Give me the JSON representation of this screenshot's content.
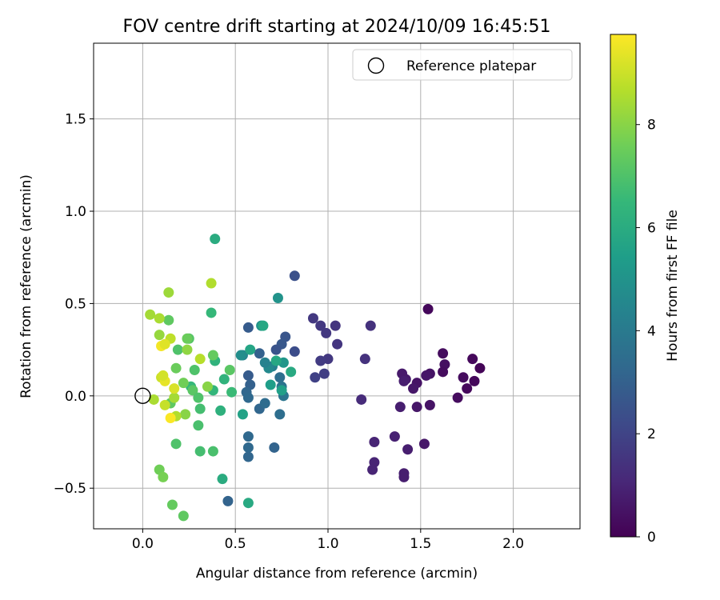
{
  "chart_data": {
    "type": "scatter",
    "title": "FOV centre drift starting at 2024/10/09 16:45:51",
    "xlabel": "Angular distance from reference (arcmin)",
    "ylabel": "Rotation from reference (arcmin)",
    "xlim": [
      -0.265,
      2.36
    ],
    "ylim": [
      -0.72,
      1.91
    ],
    "xticks": [
      0.0,
      0.5,
      1.0,
      1.5,
      2.0
    ],
    "xtick_labels": [
      "0.0",
      "0.5",
      "1.0",
      "1.5",
      "2.0"
    ],
    "yticks": [
      -0.5,
      0.0,
      0.5,
      1.0,
      1.5
    ],
    "ytick_labels": [
      "−0.5",
      "0.0",
      "0.5",
      "1.0",
      "1.5"
    ],
    "grid": true,
    "legend": {
      "placement": "top-right",
      "entries": [
        "Reference platepar"
      ]
    },
    "reference_point": {
      "x": 0.0,
      "y": 0.0,
      "label": "Reference platepar"
    },
    "colorbar": {
      "label": "Hours from first FF file",
      "colormap": "viridis",
      "range": [
        0,
        9.75
      ],
      "ticks": [
        0,
        2,
        4,
        6,
        8
      ],
      "tick_labels": [
        "0",
        "2",
        "4",
        "6",
        "8"
      ]
    },
    "points": [
      {
        "x": 1.54,
        "y": 0.47,
        "hours": 0.2
      },
      {
        "x": 1.62,
        "y": 0.23,
        "hours": 0.3
      },
      {
        "x": 1.63,
        "y": 0.17,
        "hours": 0.4
      },
      {
        "x": 1.62,
        "y": 0.13,
        "hours": 0.3
      },
      {
        "x": 1.78,
        "y": 0.2,
        "hours": 0.2
      },
      {
        "x": 1.82,
        "y": 0.15,
        "hours": 0.1
      },
      {
        "x": 1.79,
        "y": 0.08,
        "hours": 0.2
      },
      {
        "x": 1.73,
        "y": 0.1,
        "hours": 0.3
      },
      {
        "x": 1.75,
        "y": 0.04,
        "hours": 0.2
      },
      {
        "x": 1.7,
        "y": -0.01,
        "hours": 0.3
      },
      {
        "x": 1.55,
        "y": 0.12,
        "hours": 0.5
      },
      {
        "x": 1.53,
        "y": 0.11,
        "hours": 0.6
      },
      {
        "x": 1.48,
        "y": 0.07,
        "hours": 0.5
      },
      {
        "x": 1.46,
        "y": 0.04,
        "hours": 0.6
      },
      {
        "x": 1.42,
        "y": 0.09,
        "hours": 0.7
      },
      {
        "x": 1.4,
        "y": 0.12,
        "hours": 0.7
      },
      {
        "x": 1.41,
        "y": 0.08,
        "hours": 0.8
      },
      {
        "x": 1.48,
        "y": -0.06,
        "hours": 0.6
      },
      {
        "x": 1.55,
        "y": -0.05,
        "hours": 0.5
      },
      {
        "x": 1.39,
        "y": -0.06,
        "hours": 0.8
      },
      {
        "x": 1.52,
        "y": -0.26,
        "hours": 0.6
      },
      {
        "x": 1.43,
        "y": -0.29,
        "hours": 0.8
      },
      {
        "x": 1.36,
        "y": -0.22,
        "hours": 0.9
      },
      {
        "x": 1.25,
        "y": -0.25,
        "hours": 1.0
      },
      {
        "x": 1.25,
        "y": -0.36,
        "hours": 1.0
      },
      {
        "x": 1.24,
        "y": -0.4,
        "hours": 1.0
      },
      {
        "x": 1.41,
        "y": -0.42,
        "hours": 0.8
      },
      {
        "x": 1.41,
        "y": -0.44,
        "hours": 0.8
      },
      {
        "x": 1.18,
        "y": -0.02,
        "hours": 1.2
      },
      {
        "x": 1.23,
        "y": 0.38,
        "hours": 1.4
      },
      {
        "x": 1.2,
        "y": 0.2,
        "hours": 1.4
      },
      {
        "x": 0.92,
        "y": 0.42,
        "hours": 1.6
      },
      {
        "x": 0.96,
        "y": 0.38,
        "hours": 1.6
      },
      {
        "x": 1.04,
        "y": 0.38,
        "hours": 1.5
      },
      {
        "x": 0.99,
        "y": 0.34,
        "hours": 1.6
      },
      {
        "x": 1.05,
        "y": 0.28,
        "hours": 1.5
      },
      {
        "x": 1.0,
        "y": 0.2,
        "hours": 1.6
      },
      {
        "x": 0.96,
        "y": 0.19,
        "hours": 1.7
      },
      {
        "x": 0.98,
        "y": 0.12,
        "hours": 1.8
      },
      {
        "x": 0.93,
        "y": 0.1,
        "hours": 1.9
      },
      {
        "x": 0.82,
        "y": 0.65,
        "hours": 2.4
      },
      {
        "x": 0.82,
        "y": 0.24,
        "hours": 2.3
      },
      {
        "x": 0.77,
        "y": 0.32,
        "hours": 2.6
      },
      {
        "x": 0.75,
        "y": 0.28,
        "hours": 2.7
      },
      {
        "x": 0.72,
        "y": 0.25,
        "hours": 2.5
      },
      {
        "x": 0.57,
        "y": 0.37,
        "hours": 2.8
      },
      {
        "x": 0.63,
        "y": 0.23,
        "hours": 3.0
      },
      {
        "x": 0.57,
        "y": 0.11,
        "hours": 2.8
      },
      {
        "x": 0.58,
        "y": 0.06,
        "hours": 3.0
      },
      {
        "x": 0.56,
        "y": 0.02,
        "hours": 3.2
      },
      {
        "x": 0.57,
        "y": -0.01,
        "hours": 3.3
      },
      {
        "x": 0.63,
        "y": -0.07,
        "hours": 3.2
      },
      {
        "x": 0.66,
        "y": -0.04,
        "hours": 3.4
      },
      {
        "x": 0.74,
        "y": -0.1,
        "hours": 3.5
      },
      {
        "x": 0.57,
        "y": -0.22,
        "hours": 3.3
      },
      {
        "x": 0.57,
        "y": -0.28,
        "hours": 3.3
      },
      {
        "x": 0.57,
        "y": -0.33,
        "hours": 3.2
      },
      {
        "x": 0.71,
        "y": -0.28,
        "hours": 3.1
      },
      {
        "x": 0.46,
        "y": -0.57,
        "hours": 3.1
      },
      {
        "x": 0.74,
        "y": 0.1,
        "hours": 3.5
      },
      {
        "x": 0.75,
        "y": 0.05,
        "hours": 3.7
      },
      {
        "x": 0.76,
        "y": 0.0,
        "hours": 3.8
      },
      {
        "x": 0.7,
        "y": 0.16,
        "hours": 4.2
      },
      {
        "x": 0.68,
        "y": 0.15,
        "hours": 4.6
      },
      {
        "x": 0.66,
        "y": 0.18,
        "hours": 4.3
      },
      {
        "x": 0.54,
        "y": 0.22,
        "hours": 4.4
      },
      {
        "x": 0.53,
        "y": 0.22,
        "hours": 4.8
      },
      {
        "x": 0.64,
        "y": 0.38,
        "hours": 4.9
      },
      {
        "x": 0.73,
        "y": 0.53,
        "hours": 5.0
      },
      {
        "x": 0.76,
        "y": 0.18,
        "hours": 5.1
      },
      {
        "x": 0.75,
        "y": 0.03,
        "hours": 5.5
      },
      {
        "x": 0.69,
        "y": 0.06,
        "hours": 5.4
      },
      {
        "x": 0.58,
        "y": 0.25,
        "hours": 5.7
      },
      {
        "x": 0.65,
        "y": 0.38,
        "hours": 5.8
      },
      {
        "x": 0.54,
        "y": -0.1,
        "hours": 5.6
      },
      {
        "x": 0.57,
        "y": -0.58,
        "hours": 5.9
      },
      {
        "x": 0.8,
        "y": 0.13,
        "hours": 5.9
      },
      {
        "x": 0.72,
        "y": 0.19,
        "hours": 5.8
      },
      {
        "x": 0.39,
        "y": 0.85,
        "hours": 6.0
      },
      {
        "x": 0.37,
        "y": 0.45,
        "hours": 6.5
      },
      {
        "x": 0.39,
        "y": 0.19,
        "hours": 6.3
      },
      {
        "x": 0.42,
        "y": -0.08,
        "hours": 6.2
      },
      {
        "x": 0.43,
        "y": -0.45,
        "hours": 6.0
      },
      {
        "x": 0.38,
        "y": 0.03,
        "hours": 6.4
      },
      {
        "x": 0.44,
        "y": 0.09,
        "hours": 6.3
      },
      {
        "x": 0.48,
        "y": 0.02,
        "hours": 6.6
      },
      {
        "x": 0.26,
        "y": 0.05,
        "hours": 6.5
      },
      {
        "x": 0.14,
        "y": 0.41,
        "hours": 7.3
      },
      {
        "x": 0.19,
        "y": 0.25,
        "hours": 7.0
      },
      {
        "x": 0.25,
        "y": 0.31,
        "hours": 7.1
      },
      {
        "x": 0.47,
        "y": 0.14,
        "hours": 7.2
      },
      {
        "x": 0.38,
        "y": 0.22,
        "hours": 7.4
      },
      {
        "x": 0.28,
        "y": 0.14,
        "hours": 7.0
      },
      {
        "x": 0.27,
        "y": 0.03,
        "hours": 7.2
      },
      {
        "x": 0.3,
        "y": -0.01,
        "hours": 7.0
      },
      {
        "x": 0.31,
        "y": -0.07,
        "hours": 6.8
      },
      {
        "x": 0.3,
        "y": -0.16,
        "hours": 6.9
      },
      {
        "x": 0.31,
        "y": -0.3,
        "hours": 6.8
      },
      {
        "x": 0.38,
        "y": -0.3,
        "hours": 6.9
      },
      {
        "x": 0.18,
        "y": -0.26,
        "hours": 7.0
      },
      {
        "x": 0.15,
        "y": -0.04,
        "hours": 7.3
      },
      {
        "x": 0.18,
        "y": 0.15,
        "hours": 7.5
      },
      {
        "x": 0.22,
        "y": 0.07,
        "hours": 7.6
      },
      {
        "x": 0.24,
        "y": 0.31,
        "hours": 7.5
      },
      {
        "x": 0.22,
        "y": -0.65,
        "hours": 7.3
      },
      {
        "x": 0.16,
        "y": -0.59,
        "hours": 7.4
      },
      {
        "x": 0.09,
        "y": -0.4,
        "hours": 7.6
      },
      {
        "x": 0.11,
        "y": -0.44,
        "hours": 7.7
      },
      {
        "x": 0.35,
        "y": 0.05,
        "hours": 8.0
      },
      {
        "x": 0.24,
        "y": 0.25,
        "hours": 8.1
      },
      {
        "x": 0.23,
        "y": -0.1,
        "hours": 8.0
      },
      {
        "x": 0.14,
        "y": 0.56,
        "hours": 8.3
      },
      {
        "x": 0.37,
        "y": 0.61,
        "hours": 8.6
      },
      {
        "x": 0.31,
        "y": 0.2,
        "hours": 8.7
      },
      {
        "x": 0.17,
        "y": -0.01,
        "hours": 8.4
      },
      {
        "x": 0.18,
        "y": -0.11,
        "hours": 8.6
      },
      {
        "x": 0.06,
        "y": -0.02,
        "hours": 8.5
      },
      {
        "x": 0.09,
        "y": 0.33,
        "hours": 8.2
      },
      {
        "x": 0.09,
        "y": 0.42,
        "hours": 8.5
      },
      {
        "x": 0.04,
        "y": 0.44,
        "hours": 8.4
      },
      {
        "x": 0.15,
        "y": 0.31,
        "hours": 8.8
      },
      {
        "x": 0.12,
        "y": -0.05,
        "hours": 8.9
      },
      {
        "x": 0.17,
        "y": 0.04,
        "hours": 9.2
      },
      {
        "x": 0.1,
        "y": 0.1,
        "hours": 9.0
      },
      {
        "x": 0.12,
        "y": 0.08,
        "hours": 9.4
      },
      {
        "x": 0.1,
        "y": 0.27,
        "hours": 9.6
      },
      {
        "x": 0.12,
        "y": 0.28,
        "hours": 9.3
      },
      {
        "x": 0.15,
        "y": -0.12,
        "hours": 9.7
      },
      {
        "x": 0.11,
        "y": 0.11,
        "hours": 9.1
      }
    ]
  }
}
